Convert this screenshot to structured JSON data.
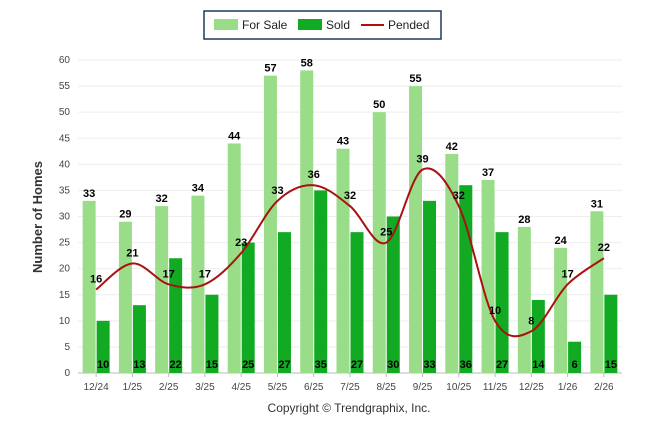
{
  "chart_data": {
    "type": "bar",
    "categories": [
      "12/24",
      "1/25",
      "2/25",
      "3/25",
      "4/25",
      "5/25",
      "6/25",
      "7/25",
      "8/25",
      "9/25",
      "10/25",
      "11/25",
      "12/25",
      "1/26",
      "2/26"
    ],
    "series": [
      {
        "name": "For Sale",
        "type": "bar",
        "color": "#99dd88",
        "values": [
          33,
          29,
          32,
          34,
          44,
          57,
          58,
          43,
          50,
          55,
          42,
          37,
          28,
          24,
          31
        ]
      },
      {
        "name": "Sold",
        "type": "bar",
        "color": "#11aa22",
        "values": [
          10,
          13,
          22,
          15,
          25,
          27,
          35,
          27,
          30,
          33,
          36,
          27,
          14,
          6,
          15
        ]
      },
      {
        "name": "Pended",
        "type": "line",
        "color": "#aa1111",
        "values": [
          16,
          21,
          17,
          17,
          23,
          33,
          36,
          32,
          25,
          39,
          32,
          10,
          8,
          17,
          22
        ]
      }
    ],
    "ylabel": "Number of Homes",
    "ylim": [
      0,
      60
    ],
    "yticks": [
      0,
      5,
      10,
      15,
      20,
      25,
      30,
      35,
      40,
      45,
      50,
      55,
      60
    ],
    "legend_position": "top-center",
    "grid": true,
    "footer": "Copyright © Trendgraphix, Inc."
  }
}
